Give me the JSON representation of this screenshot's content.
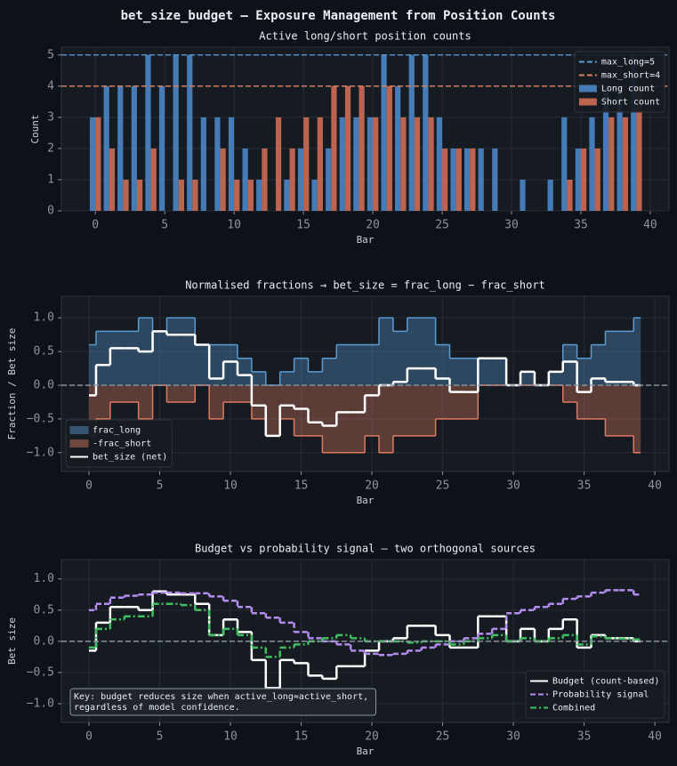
{
  "figure_title": "bet_size_budget — Exposure Management from Position Counts",
  "chart_data": [
    {
      "type": "bar",
      "title": "Active long/short position counts",
      "xlabel": "Bar",
      "ylabel": "Count",
      "x": [
        0,
        1,
        2,
        3,
        4,
        5,
        6,
        7,
        8,
        9,
        10,
        11,
        12,
        13,
        14,
        15,
        16,
        17,
        18,
        19,
        20,
        21,
        22,
        23,
        24,
        25,
        26,
        27,
        28,
        29,
        30,
        31,
        32,
        33,
        34,
        35,
        36,
        37,
        38,
        39
      ],
      "xlim": [
        -2.45,
        41.35
      ],
      "ylim": [
        0,
        5.25
      ],
      "xticks": [
        0,
        5,
        10,
        15,
        20,
        25,
        30,
        35,
        40
      ],
      "yticks": [
        0,
        1,
        2,
        3,
        4,
        5
      ],
      "grid": true,
      "legend": "upper right",
      "hlines": [
        {
          "name": "max_long=5",
          "value": 5,
          "color": "#5b9bd5",
          "style": "dashed"
        },
        {
          "name": "max_short=4",
          "value": 4,
          "color": "#d9825f",
          "style": "dashed"
        }
      ],
      "series": [
        {
          "name": "Long count",
          "color": "#4a86c8",
          "values": [
            3,
            4,
            4,
            4,
            5,
            4,
            5,
            5,
            3,
            3,
            3,
            2,
            1,
            0,
            1,
            2,
            1,
            2,
            3,
            3,
            3,
            5,
            4,
            5,
            5,
            3,
            2,
            2,
            2,
            2,
            0,
            1,
            0,
            1,
            3,
            2,
            3,
            4,
            4,
            5
          ]
        },
        {
          "name": "Short count",
          "color": "#cf6d55",
          "values": [
            3,
            2,
            1,
            1,
            2,
            0,
            1,
            1,
            0,
            2,
            1,
            1,
            2,
            3,
            2,
            3,
            3,
            4,
            4,
            4,
            3,
            4,
            3,
            3,
            3,
            2,
            2,
            2,
            0,
            0,
            0,
            0,
            0,
            0,
            1,
            2,
            2,
            3,
            3,
            4
          ]
        }
      ]
    },
    {
      "type": "step",
      "title": "Normalised fractions → bet_size = frac_long − frac_short",
      "xlabel": "Bar",
      "ylabel": "Fraction / Bet size",
      "x": [
        0,
        1,
        2,
        3,
        4,
        5,
        6,
        7,
        8,
        9,
        10,
        11,
        12,
        13,
        14,
        15,
        16,
        17,
        18,
        19,
        20,
        21,
        22,
        23,
        24,
        25,
        26,
        27,
        28,
        29,
        30,
        31,
        32,
        33,
        34,
        35,
        36,
        37,
        38,
        39
      ],
      "xlim": [
        -1.95,
        41
      ],
      "ylim": [
        -1.28,
        1.32
      ],
      "xticks": [
        0,
        5,
        10,
        15,
        20,
        25,
        30,
        35,
        40
      ],
      "yticks": [
        {
          "value": -1,
          "label": "−1.0"
        },
        {
          "value": -0.5,
          "label": "−0.5"
        },
        {
          "value": 0,
          "label": "0.0"
        },
        {
          "value": 0.5,
          "label": "0.5"
        },
        {
          "value": 1,
          "label": "1.0"
        }
      ],
      "grid": true,
      "legend": "lower left",
      "hlines": [
        {
          "value": 0,
          "color": "#8b949e",
          "style": "dashed"
        }
      ],
      "series": [
        {
          "name": "frac_long",
          "color": "#5b9bd5",
          "fill": true,
          "style": "solid",
          "values": [
            0.6,
            0.8,
            0.8,
            0.8,
            1,
            0.8,
            1,
            1,
            0.6,
            0.6,
            0.6,
            0.4,
            0.2,
            0,
            0.2,
            0.4,
            0.2,
            0.4,
            0.6,
            0.6,
            0.6,
            1,
            0.8,
            1,
            1,
            0.6,
            0.4,
            0.4,
            0.4,
            0.4,
            0,
            0.2,
            0,
            0.2,
            0.6,
            0.4,
            0.6,
            0.8,
            0.8,
            1
          ]
        },
        {
          "name": "-frac_short",
          "color": "#e07a5f",
          "fill": true,
          "style": "solid",
          "values": [
            -0.75,
            -0.5,
            -0.25,
            -0.25,
            -0.5,
            0,
            -0.25,
            -0.25,
            0,
            -0.5,
            -0.25,
            -0.25,
            -0.5,
            -0.75,
            -0.5,
            -0.75,
            -0.75,
            -1,
            -1,
            -1,
            -0.75,
            -1,
            -0.75,
            -0.75,
            -0.75,
            -0.5,
            -0.5,
            -0.5,
            0,
            0,
            0,
            0,
            0,
            0,
            -0.25,
            -0.5,
            -0.5,
            -0.75,
            -0.75,
            -1
          ]
        },
        {
          "name": "bet_size (net)",
          "color": "#ffffff",
          "fill": false,
          "style": "solid",
          "values": [
            -0.15,
            0.3,
            0.55,
            0.55,
            0.5,
            0.8,
            0.75,
            0.75,
            0.6,
            0.1,
            0.35,
            0.15,
            -0.3,
            -0.75,
            -0.3,
            -0.35,
            -0.55,
            -0.6,
            -0.4,
            -0.4,
            -0.15,
            0,
            0.05,
            0.25,
            0.25,
            0.1,
            -0.1,
            -0.1,
            0.4,
            0.4,
            0,
            0.2,
            0,
            0.2,
            0.35,
            -0.1,
            0.1,
            0.05,
            0.05,
            0
          ]
        }
      ]
    },
    {
      "type": "step",
      "title": "Budget vs probability signal — two orthogonal sources",
      "xlabel": "Bar",
      "ylabel": "Bet size",
      "x": [
        0,
        1,
        2,
        3,
        4,
        5,
        6,
        7,
        8,
        9,
        10,
        11,
        12,
        13,
        14,
        15,
        16,
        17,
        18,
        19,
        20,
        21,
        22,
        23,
        24,
        25,
        26,
        27,
        28,
        29,
        30,
        31,
        32,
        33,
        34,
        35,
        36,
        37,
        38,
        39
      ],
      "xlim": [
        -1.95,
        41
      ],
      "ylim": [
        -1.3,
        1.31
      ],
      "xticks": [
        0,
        5,
        10,
        15,
        20,
        25,
        30,
        35,
        40
      ],
      "yticks": [
        {
          "value": -1,
          "label": "−1.0"
        },
        {
          "value": -0.5,
          "label": "−0.5"
        },
        {
          "value": 0,
          "label": "0.0"
        },
        {
          "value": 0.5,
          "label": "0.5"
        },
        {
          "value": 1,
          "label": "1.0"
        }
      ],
      "grid": true,
      "legend": "lower right",
      "hlines": [
        {
          "value": 0,
          "color": "#8b949e",
          "style": "dashed"
        }
      ],
      "annotation": [
        "Key: budget reduces size when active_long≈active_short,",
        "regardless of model confidence."
      ],
      "series": [
        {
          "name": "Budget (count-based)",
          "color": "#ffffff",
          "fill": false,
          "style": "solid",
          "values": [
            -0.15,
            0.3,
            0.55,
            0.55,
            0.5,
            0.8,
            0.75,
            0.75,
            0.6,
            0.1,
            0.35,
            0.15,
            -0.3,
            -0.75,
            -0.3,
            -0.35,
            -0.55,
            -0.6,
            -0.4,
            -0.4,
            -0.15,
            0,
            0.05,
            0.25,
            0.25,
            0.1,
            -0.1,
            -0.1,
            0.4,
            0.4,
            0,
            0.2,
            0,
            0.2,
            0.35,
            -0.1,
            0.1,
            0.05,
            0.05,
            0
          ]
        },
        {
          "name": "Probability signal",
          "color": "#b48cf0",
          "fill": false,
          "style": "dashed",
          "values": [
            0.5,
            0.6,
            0.7,
            0.73,
            0.75,
            0.78,
            0.78,
            0.77,
            0.77,
            0.72,
            0.65,
            0.55,
            0.45,
            0.38,
            0.3,
            0.15,
            0.05,
            0,
            -0.05,
            -0.15,
            -0.2,
            -0.22,
            -0.2,
            -0.15,
            -0.1,
            -0.05,
            0,
            0.05,
            0.12,
            0.2,
            0.45,
            0.5,
            0.55,
            0.6,
            0.68,
            0.72,
            0.78,
            0.82,
            0.82,
            0.75
          ]
        },
        {
          "name": "Combined",
          "color": "#3fbf5f",
          "fill": false,
          "style": "dashdot",
          "values": [
            -0.1,
            0.2,
            0.35,
            0.4,
            0.4,
            0.6,
            0.6,
            0.58,
            0.5,
            0.1,
            0.2,
            0.1,
            -0.1,
            -0.25,
            -0.1,
            -0.05,
            0,
            0.05,
            0.1,
            0.05,
            0,
            0,
            0,
            -0.02,
            0,
            0,
            -0.05,
            0,
            0.05,
            0.1,
            0,
            0.05,
            0,
            0.05,
            0.1,
            -0.05,
            0.08,
            0.05,
            0.04,
            0.03
          ]
        }
      ]
    }
  ]
}
